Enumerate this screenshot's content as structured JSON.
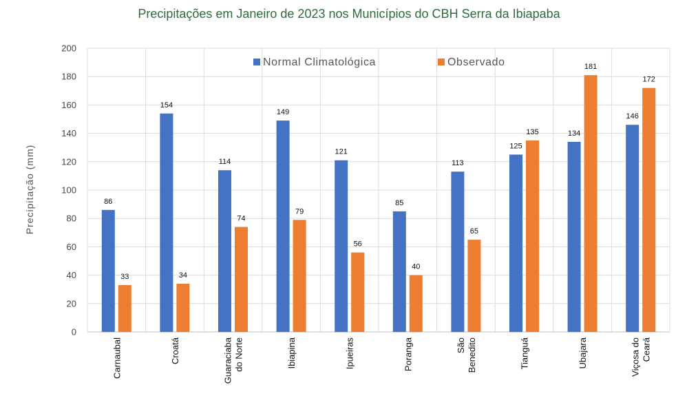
{
  "chart_data": {
    "type": "bar",
    "title": "Precipitações em Janeiro de 2023 nos Municípios do CBH Serra da Ibiapaba",
    "xlabel": "",
    "ylabel": "Precipitação (mm)",
    "ylim": [
      0,
      200
    ],
    "yticks": [
      0,
      20,
      40,
      60,
      80,
      100,
      120,
      140,
      160,
      180,
      200
    ],
    "grid": true,
    "legend_position": "top",
    "categories": [
      [
        "Carnaubal"
      ],
      [
        "Croatá"
      ],
      [
        "Guaraciaba",
        "do Norte"
      ],
      [
        "Ibiapina"
      ],
      [
        "Ipueiras"
      ],
      [
        "Poranga"
      ],
      [
        "São",
        "Benedito"
      ],
      [
        "Tianguá"
      ],
      [
        "Ubajara"
      ],
      [
        "Viçosa do",
        "Ceará"
      ]
    ],
    "series": [
      {
        "name": "Normal Climatológica",
        "color": "#4472c4",
        "values": [
          86,
          154,
          114,
          149,
          121,
          85,
          113,
          125,
          134,
          146
        ]
      },
      {
        "name": "Observado",
        "color": "#ed7d31",
        "values": [
          33,
          34,
          74,
          79,
          56,
          40,
          65,
          135,
          181,
          172
        ]
      }
    ]
  }
}
